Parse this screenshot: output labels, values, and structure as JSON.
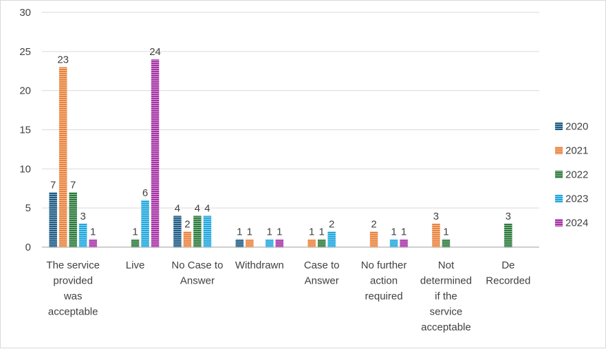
{
  "chart_data": {
    "type": "bar",
    "title": "",
    "xlabel": "",
    "ylabel": "",
    "ylim": [
      0,
      30
    ],
    "yticks": [
      0,
      5,
      10,
      15,
      20,
      25,
      30
    ],
    "grid": true,
    "legend_position": "right",
    "categories": [
      [
        "The service",
        "provided",
        "was",
        "acceptable"
      ],
      [
        "Live"
      ],
      [
        "No Case to",
        "Answer"
      ],
      [
        "Withdrawn"
      ],
      [
        "Case to",
        "Answer"
      ],
      [
        "No further",
        "action",
        "required"
      ],
      [
        "Not",
        "determined",
        "if the",
        "service",
        "acceptable"
      ],
      [
        "De",
        "Recorded"
      ]
    ],
    "series": [
      {
        "name": "2020",
        "color": "#1f5c85",
        "values": [
          7,
          null,
          4,
          1,
          null,
          null,
          null,
          null
        ]
      },
      {
        "name": "2021",
        "color": "#e8823c",
        "values": [
          23,
          null,
          2,
          1,
          1,
          2,
          3,
          null
        ]
      },
      {
        "name": "2022",
        "color": "#2b7a3b",
        "values": [
          7,
          1,
          4,
          null,
          1,
          null,
          1,
          3
        ]
      },
      {
        "name": "2023",
        "color": "#1ea7dd",
        "values": [
          3,
          6,
          4,
          1,
          2,
          1,
          null,
          null
        ]
      },
      {
        "name": "2024",
        "color": "#a632a6",
        "values": [
          1,
          24,
          null,
          1,
          null,
          1,
          null,
          null
        ]
      }
    ]
  }
}
